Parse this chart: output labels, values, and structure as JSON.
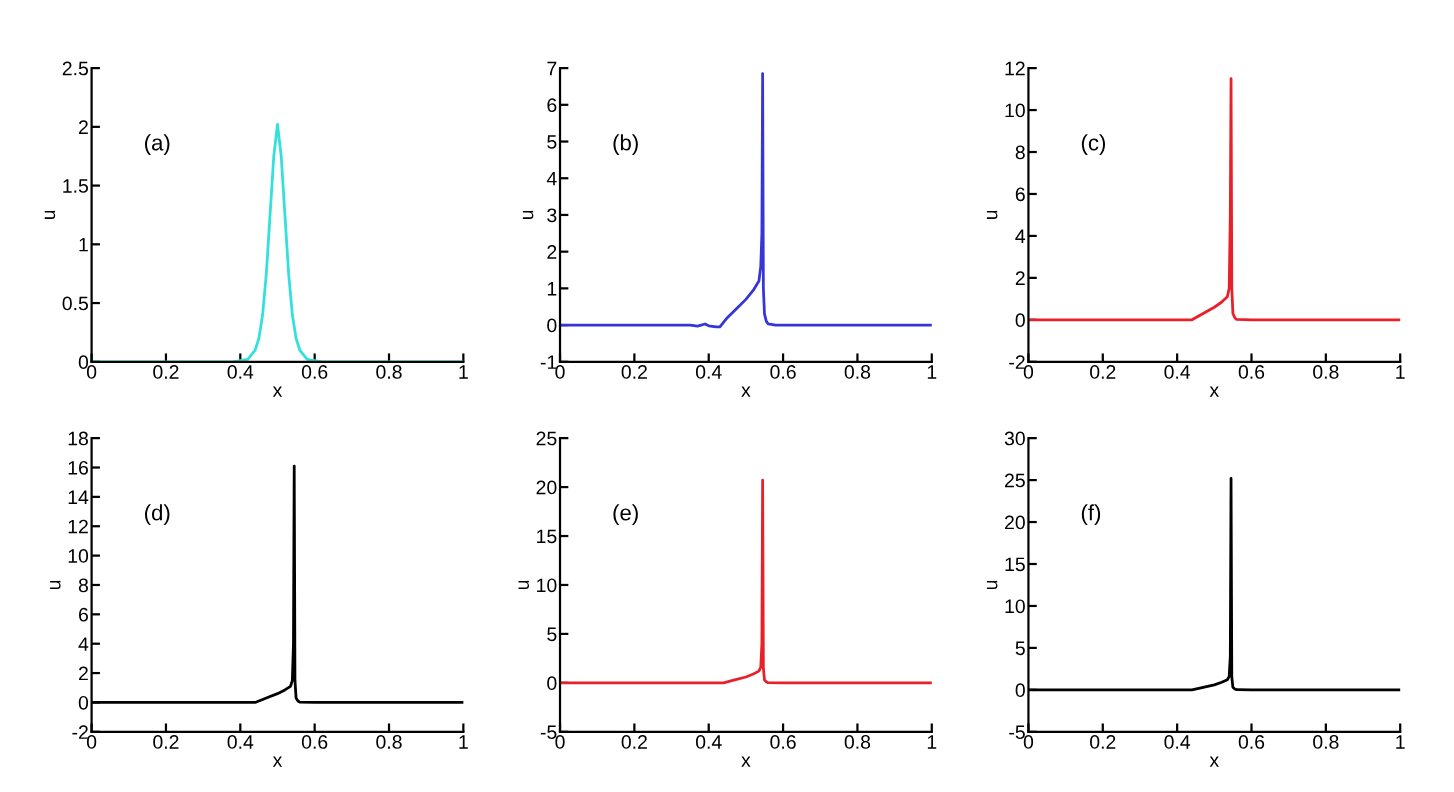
{
  "chart_data": [
    {
      "type": "line",
      "annotations": [
        "(a)"
      ],
      "xlabel": "x",
      "ylabel": "u",
      "xlim": [
        0,
        1
      ],
      "xticks": [
        0,
        0.2,
        0.4,
        0.6,
        0.8,
        1
      ],
      "ylim": [
        0,
        2.5
      ],
      "yticks": [
        0,
        0.5,
        1,
        1.5,
        2,
        2.5
      ],
      "grid": false,
      "legend": false,
      "series": [
        {
          "color": "#33e0dc",
          "x": [
            0,
            0.38,
            0.42,
            0.44,
            0.45,
            0.46,
            0.47,
            0.48,
            0.49,
            0.5,
            0.51,
            0.52,
            0.53,
            0.54,
            0.55,
            0.56,
            0.58,
            0.62,
            1
          ],
          "values": [
            0,
            0,
            0.02,
            0.1,
            0.2,
            0.4,
            0.75,
            1.25,
            1.75,
            2.02,
            1.75,
            1.25,
            0.75,
            0.4,
            0.2,
            0.1,
            0.02,
            0,
            0
          ]
        }
      ]
    },
    {
      "type": "line",
      "annotations": [
        "(b)"
      ],
      "xlabel": "x",
      "ylabel": "u",
      "xlim": [
        0,
        1
      ],
      "xticks": [
        0,
        0.2,
        0.4,
        0.6,
        0.8,
        1
      ],
      "ylim": [
        -1,
        7
      ],
      "yticks": [
        -1,
        0,
        1,
        2,
        3,
        4,
        5,
        6,
        7
      ],
      "grid": false,
      "legend": false,
      "series": [
        {
          "color": "#3636d8",
          "x": [
            0,
            0.35,
            0.37,
            0.39,
            0.4,
            0.42,
            0.43,
            0.45,
            0.48,
            0.5,
            0.52,
            0.535,
            0.54,
            0.543,
            0.545,
            0.547,
            0.55,
            0.555,
            0.56,
            0.58,
            0.6,
            1
          ],
          "values": [
            0,
            0,
            -0.03,
            0.03,
            -0.02,
            -0.05,
            -0.05,
            0.2,
            0.5,
            0.7,
            0.95,
            1.2,
            1.6,
            2.5,
            6.85,
            1.0,
            0.3,
            0.1,
            0.03,
            0,
            0,
            0
          ]
        }
      ]
    },
    {
      "type": "line",
      "annotations": [
        "(c)"
      ],
      "xlabel": "x",
      "ylabel": "u",
      "xlim": [
        0,
        1
      ],
      "xticks": [
        0,
        0.2,
        0.4,
        0.6,
        0.8,
        1
      ],
      "ylim": [
        -2,
        12
      ],
      "yticks": [
        -2,
        0,
        2,
        4,
        6,
        8,
        10,
        12
      ],
      "grid": false,
      "legend": false,
      "series": [
        {
          "color": "#e8202a",
          "x": [
            0,
            0.2,
            0.4,
            0.44,
            0.47,
            0.5,
            0.52,
            0.535,
            0.54,
            0.543,
            0.545,
            0.547,
            0.55,
            0.555,
            0.56,
            0.6,
            1
          ],
          "values": [
            0,
            0,
            0,
            0,
            0.3,
            0.6,
            0.85,
            1.1,
            1.5,
            5.0,
            11.5,
            1.5,
            0.3,
            0.1,
            0.02,
            0,
            0
          ]
        }
      ]
    },
    {
      "type": "line",
      "annotations": [
        "(d)"
      ],
      "xlabel": "x",
      "ylabel": "u",
      "xlim": [
        0,
        1
      ],
      "xticks": [
        0,
        0.2,
        0.4,
        0.6,
        0.8,
        1
      ],
      "ylim": [
        -2,
        18
      ],
      "yticks": [
        -2,
        0,
        2,
        4,
        6,
        8,
        10,
        12,
        14,
        16,
        18
      ],
      "grid": false,
      "legend": false,
      "series": [
        {
          "color": "#000000",
          "x": [
            0,
            0.2,
            0.4,
            0.44,
            0.47,
            0.5,
            0.52,
            0.535,
            0.54,
            0.543,
            0.545,
            0.547,
            0.55,
            0.555,
            0.56,
            0.6,
            1
          ],
          "values": [
            0,
            0,
            0,
            0,
            0.3,
            0.6,
            0.85,
            1.1,
            1.5,
            4.0,
            16.1,
            1.5,
            0.3,
            0.1,
            0.02,
            0,
            0
          ]
        }
      ]
    },
    {
      "type": "line",
      "annotations": [
        "(e)"
      ],
      "xlabel": "x",
      "ylabel": "u",
      "xlim": [
        0,
        1
      ],
      "xticks": [
        0,
        0.2,
        0.4,
        0.6,
        0.8,
        1
      ],
      "ylim": [
        -5,
        25
      ],
      "yticks": [
        -5,
        0,
        5,
        10,
        15,
        20,
        25
      ],
      "grid": false,
      "legend": false,
      "series": [
        {
          "color": "#e8202a",
          "x": [
            0,
            0.2,
            0.4,
            0.44,
            0.47,
            0.5,
            0.52,
            0.535,
            0.54,
            0.543,
            0.545,
            0.547,
            0.55,
            0.555,
            0.56,
            0.6,
            1
          ],
          "values": [
            0,
            0,
            0,
            0,
            0.3,
            0.6,
            0.9,
            1.2,
            1.6,
            4.0,
            20.7,
            1.5,
            0.3,
            0.1,
            0.02,
            0,
            0
          ]
        }
      ]
    },
    {
      "type": "line",
      "annotations": [
        "(f)"
      ],
      "xlabel": "x",
      "ylabel": "u",
      "xlim": [
        0,
        1
      ],
      "xticks": [
        0,
        0.2,
        0.4,
        0.6,
        0.8,
        1
      ],
      "ylim": [
        -5,
        30
      ],
      "yticks": [
        -5,
        0,
        5,
        10,
        15,
        20,
        25,
        30
      ],
      "grid": false,
      "legend": false,
      "series": [
        {
          "color": "#000000",
          "x": [
            0,
            0.2,
            0.4,
            0.44,
            0.47,
            0.5,
            0.52,
            0.535,
            0.54,
            0.543,
            0.545,
            0.547,
            0.55,
            0.555,
            0.56,
            0.6,
            1
          ],
          "values": [
            0,
            0,
            0,
            0,
            0.3,
            0.6,
            0.9,
            1.2,
            1.6,
            4.0,
            25.2,
            1.5,
            0.3,
            0.1,
            0.02,
            0,
            0
          ]
        }
      ]
    }
  ]
}
